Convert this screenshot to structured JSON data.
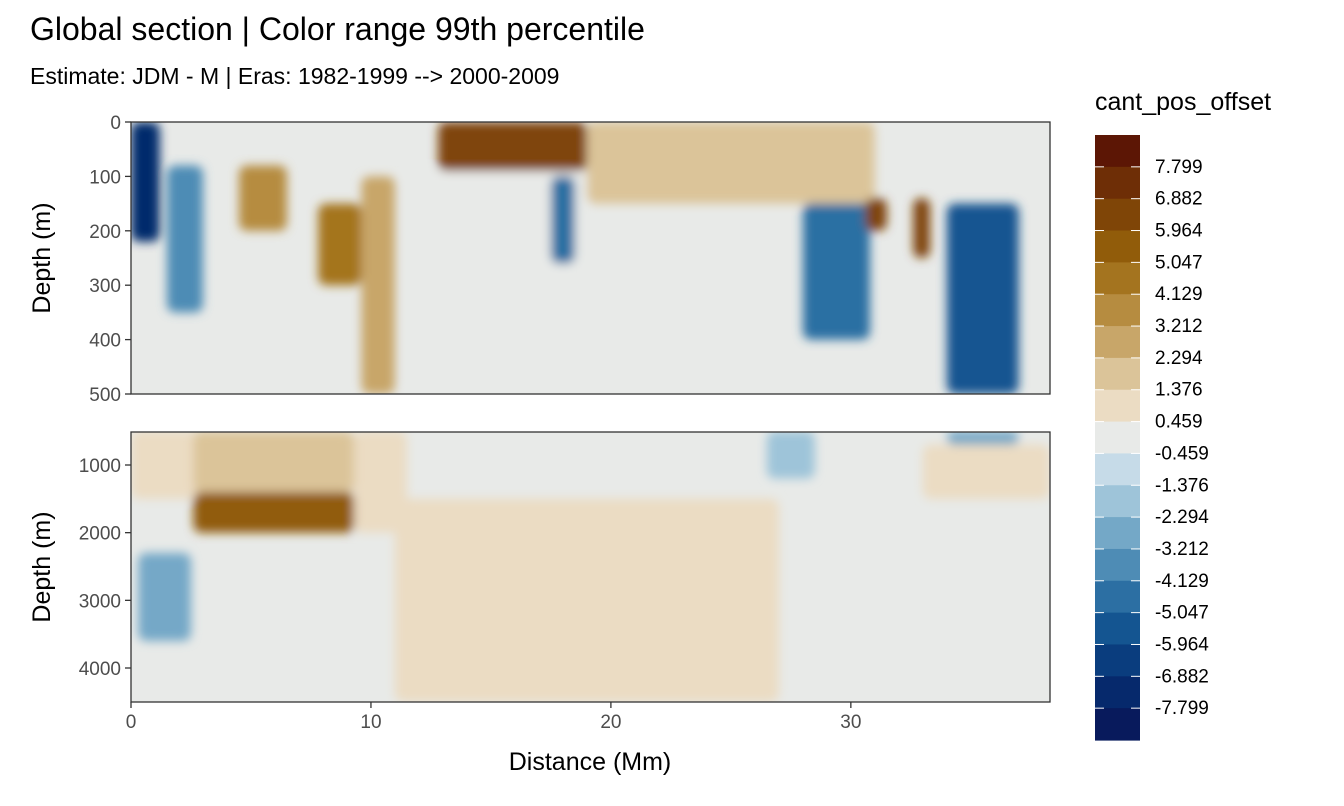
{
  "chart_data": {
    "type": "heatmap",
    "title": "Global section | Color range 99th percentile",
    "subtitle": "Estimate: JDM - M | Eras: 1982-1999 --> 2000-2009",
    "xlabel": "Distance (Mm)",
    "ylabel": "Depth (m)",
    "x_ticks": [
      "0",
      "10",
      "20",
      "30"
    ],
    "xlim": [
      0,
      38.3
    ],
    "legend": {
      "title": "cant_pos_offset",
      "placement": "right",
      "labels": [
        "7.799",
        "6.882",
        "5.964",
        "5.047",
        "4.129",
        "3.212",
        "2.294",
        "1.376",
        "0.459",
        "-0.459",
        "-1.376",
        "-2.294",
        "-3.212",
        "-4.129",
        "-5.047",
        "-5.964",
        "-6.882",
        "-7.799"
      ],
      "colors": [
        "#5c1605",
        "#6e2e06",
        "#7f4507",
        "#915c0a",
        "#a4741f",
        "#b68c40",
        "#c8a669",
        "#dbc499",
        "#ebdcc3",
        "#e8eae8",
        "#c6dbe8",
        "#9ec4d9",
        "#74a8c7",
        "#4e8cb5",
        "#2c6fa3",
        "#145591",
        "#0a3d7e",
        "#06296c",
        "#081a5c"
      ]
    },
    "panels": [
      {
        "name": "upper",
        "depth_range_m": [
          0,
          500
        ],
        "y_ticks": [
          "0",
          "100",
          "200",
          "300",
          "400",
          "500"
        ],
        "features": [
          {
            "x": [
              0,
              1.2
            ],
            "depth": [
              0,
              220
            ],
            "value": -7.5
          },
          {
            "x": [
              1.5,
              3.0
            ],
            "depth": [
              80,
              350
            ],
            "value": -3.5
          },
          {
            "x": [
              4.5,
              6.5
            ],
            "depth": [
              80,
              200
            ],
            "value": 3.5
          },
          {
            "x": [
              7.8,
              9.6
            ],
            "depth": [
              150,
              300
            ],
            "value": 4.5
          },
          {
            "x": [
              9.6,
              11.0
            ],
            "depth": [
              100,
              500
            ],
            "value": 2.3
          },
          {
            "x": [
              12.8,
              19.0
            ],
            "depth": [
              0,
              90
            ],
            "value": 6.5
          },
          {
            "x": [
              11.5,
              19.0
            ],
            "depth": [
              90,
              500
            ],
            "value": 0.3
          },
          {
            "x": [
              17.5,
              18.5
            ],
            "depth": [
              100,
              260
            ],
            "value": -4.5
          },
          {
            "x": [
              19.0,
              31.0
            ],
            "depth": [
              0,
              150
            ],
            "value": 2.0
          },
          {
            "x": [
              28.0,
              30.8
            ],
            "depth": [
              150,
              400
            ],
            "value": -5.0
          },
          {
            "x": [
              30.6,
              31.5
            ],
            "depth": [
              140,
              200
            ],
            "value": 6.0
          },
          {
            "x": [
              32.6,
              33.3
            ],
            "depth": [
              140,
              250
            ],
            "value": 6.5
          },
          {
            "x": [
              34.0,
              37.0
            ],
            "depth": [
              150,
              500
            ],
            "value": -5.5
          }
        ]
      },
      {
        "name": "lower",
        "depth_range_m": [
          500,
          4500
        ],
        "y_ticks": [
          "1000",
          "2000",
          "3000",
          "4000"
        ],
        "features": [
          {
            "x": [
              0,
              3.0
            ],
            "depth": [
              500,
              1500
            ],
            "value": 0.8
          },
          {
            "x": [
              2.6,
              9.3
            ],
            "depth": [
              500,
              1400
            ],
            "value": 1.8
          },
          {
            "x": [
              2.6,
              9.3
            ],
            "depth": [
              1400,
              2000
            ],
            "value": 5.5
          },
          {
            "x": [
              0.3,
              2.5
            ],
            "depth": [
              2300,
              3600
            ],
            "value": -3.0
          },
          {
            "x": [
              9.3,
              11.5
            ],
            "depth": [
              500,
              2000
            ],
            "value": 1.0
          },
          {
            "x": [
              11.0,
              27.0
            ],
            "depth": [
              1500,
              4500
            ],
            "value": 0.6
          },
          {
            "x": [
              26.5,
              28.5
            ],
            "depth": [
              500,
              1200
            ],
            "value": -1.5
          },
          {
            "x": [
              34.0,
              37.0
            ],
            "depth": [
              500,
              700
            ],
            "value": -3.0
          },
          {
            "x": [
              33.0,
              38.3
            ],
            "depth": [
              700,
              1500
            ],
            "value": 0.6
          }
        ]
      }
    ]
  }
}
